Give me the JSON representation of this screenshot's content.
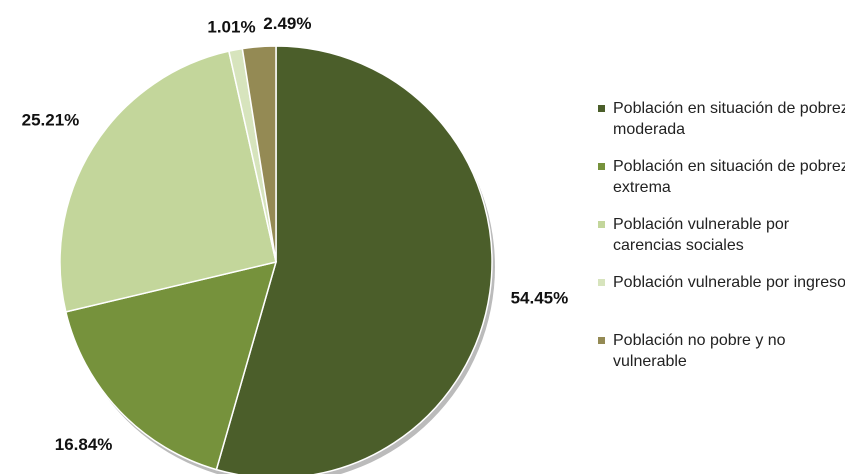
{
  "chart_data": {
    "type": "pie",
    "categories": [
      "Población  en situación de pobreza moderada",
      "Población  en situación de pobreza extrema",
      "Población  vulnerable por carencias sociales",
      "Población  vulnerable por ingresos",
      "Población  no pobre y no vulnerable"
    ],
    "values": [
      54.45,
      16.84,
      25.21,
      1.01,
      2.49
    ],
    "value_labels": [
      "54.45%",
      "16.84%",
      "25.21%",
      "1.01%",
      "2.49%"
    ],
    "colors": [
      "#4b5e2a",
      "#76923c",
      "#c3d69b",
      "#d7e4bd",
      "#948a54"
    ],
    "legend": "right"
  }
}
